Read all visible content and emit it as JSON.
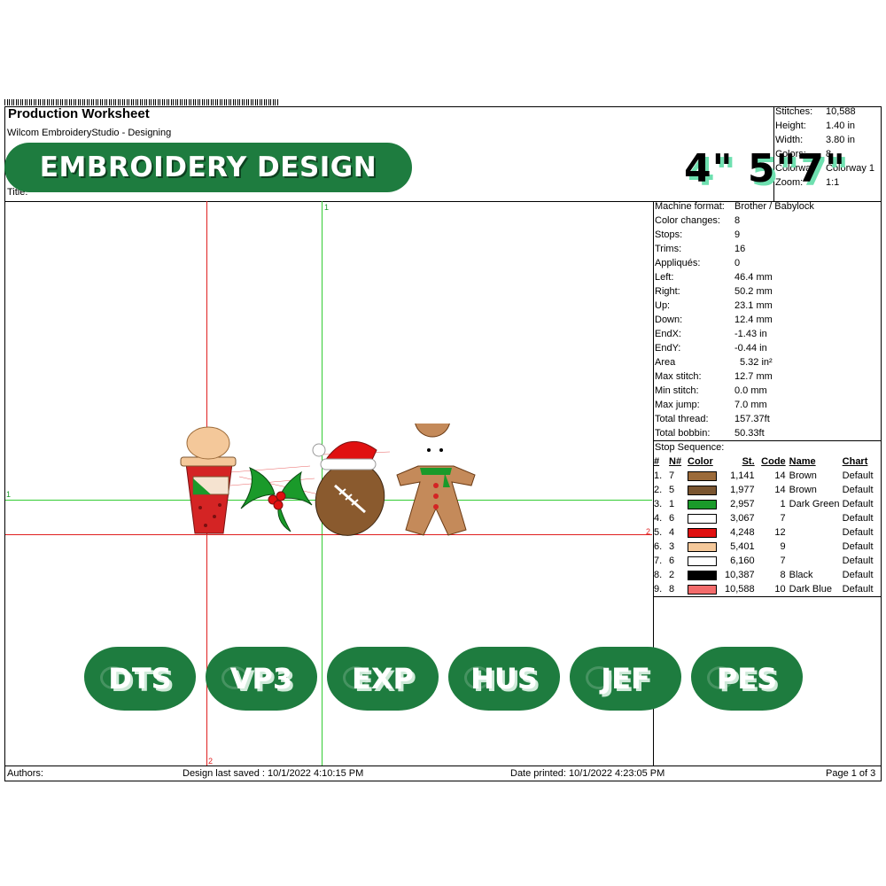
{
  "header": {
    "title": "Production Worksheet",
    "software": "Wilcom EmbroideryStudio - Designing",
    "title_label": "Title:",
    "badge": "EMBROIDERY DESIGN",
    "sizes": "4\" 5\"7\""
  },
  "summary": [
    {
      "label": "Stitches:",
      "value": "10,588"
    },
    {
      "label": "Height:",
      "value": "1.40 in"
    },
    {
      "label": "Width:",
      "value": "3.80 in"
    },
    {
      "label": "Colors:",
      "value": "8"
    },
    {
      "label": "Colorway:",
      "value": "Colorway 1"
    },
    {
      "label": "Zoom:",
      "value": "1:1"
    }
  ],
  "details": [
    {
      "label": "Machine format:",
      "value": "Brother / Babylock"
    },
    {
      "label": "Color changes:",
      "value": "8"
    },
    {
      "label": "Stops:",
      "value": "9"
    },
    {
      "label": "Trims:",
      "value": "16"
    },
    {
      "label": "Appliqués:",
      "value": "0"
    },
    {
      "label": "Left:",
      "value": "46.4 mm"
    },
    {
      "label": "Right:",
      "value": "50.2 mm"
    },
    {
      "label": "Up:",
      "value": "23.1 mm"
    },
    {
      "label": "Down:",
      "value": "12.4 mm"
    },
    {
      "label": "EndX:",
      "value": "-1.43 in"
    },
    {
      "label": "EndY:",
      "value": "-0.44 in"
    },
    {
      "label": "Area",
      "value": "5.32 in²"
    },
    {
      "label": "Max stitch:",
      "value": "12.7 mm"
    },
    {
      "label": "Min stitch:",
      "value": "0.0 mm"
    },
    {
      "label": "Max jump:",
      "value": "7.0 mm"
    },
    {
      "label": "Total thread:",
      "value": "157.37ft"
    },
    {
      "label": "Total bobbin:",
      "value": "50.33ft"
    }
  ],
  "stop_sequence": {
    "title": "Stop Sequence:",
    "headers": {
      "idx": "#",
      "n": "N#",
      "color": "Color",
      "st": "St.",
      "code": "Code",
      "name": "Name",
      "chart": "Chart"
    },
    "rows": [
      {
        "idx": "1.",
        "n": "7",
        "color": "#9c6b3a",
        "st": "1,141",
        "code": "14",
        "name": "Brown",
        "chart": "Default"
      },
      {
        "idx": "2.",
        "n": "5",
        "color": "#7a5530",
        "st": "1,977",
        "code": "14",
        "name": "Brown",
        "chart": "Default"
      },
      {
        "idx": "3.",
        "n": "1",
        "color": "#1a9a2a",
        "st": "2,957",
        "code": "1",
        "name": "Dark Green",
        "chart": "Default"
      },
      {
        "idx": "4.",
        "n": "6",
        "color": "#ffffff",
        "st": "3,067",
        "code": "7",
        "name": "",
        "chart": "Default"
      },
      {
        "idx": "5.",
        "n": "4",
        "color": "#e01010",
        "st": "4,248",
        "code": "12",
        "name": "",
        "chart": "Default"
      },
      {
        "idx": "6.",
        "n": "3",
        "color": "#f4c89a",
        "st": "5,401",
        "code": "9",
        "name": "",
        "chart": "Default"
      },
      {
        "idx": "7.",
        "n": "6",
        "color": "#ffffff",
        "st": "6,160",
        "code": "7",
        "name": "",
        "chart": "Default"
      },
      {
        "idx": "8.",
        "n": "2",
        "color": "#000000",
        "st": "10,387",
        "code": "8",
        "name": "Black",
        "chart": "Default"
      },
      {
        "idx": "9.",
        "n": "8",
        "color": "#f36b6b",
        "st": "10,588",
        "code": "10",
        "name": "Dark Blue",
        "chart": "Default"
      }
    ]
  },
  "canvas": {
    "marker_1": "1",
    "marker_2": "2"
  },
  "formats": [
    "DTS",
    "VP3",
    "EXP",
    "HUS",
    "JEF",
    "PES"
  ],
  "footer": {
    "authors": "Authors:",
    "saved": "Design last saved : 10/1/2022 4:10:15 PM",
    "printed": "Date printed: 10/1/2022 4:23:05 PM",
    "page": "Page 1 of 3"
  },
  "colors": {
    "brand_green": "#1e7c3f",
    "guide_green": "#33cc33",
    "guide_red": "#e02020"
  }
}
